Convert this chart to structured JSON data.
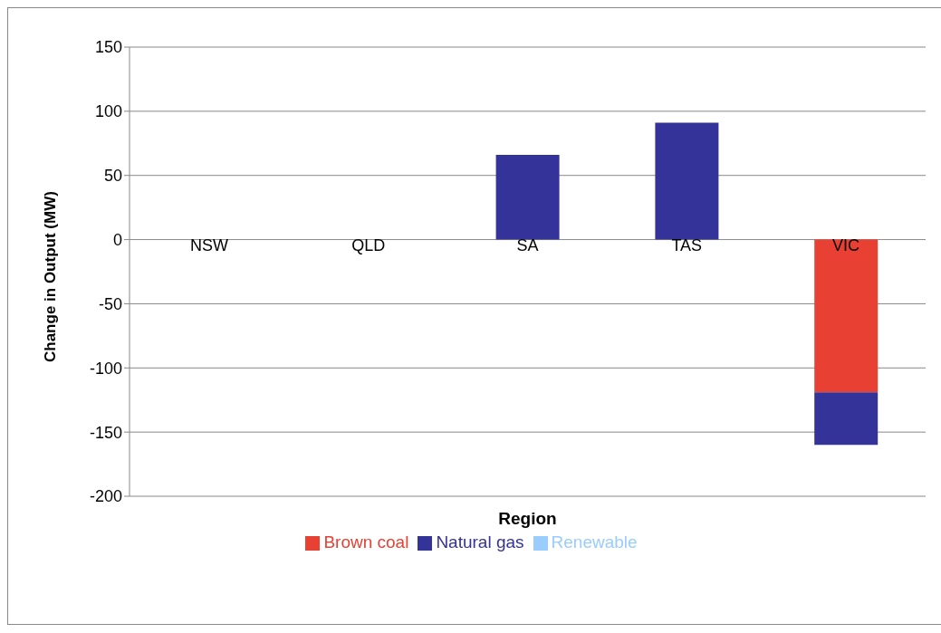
{
  "chart_data": {
    "type": "bar",
    "xlabel": "Region",
    "ylabel": "Change in Output (MW)",
    "categories": [
      "NSW",
      "QLD",
      "SA",
      "TAS",
      "VIC"
    ],
    "series": [
      {
        "name": "Brown coal",
        "color": "#e84033",
        "values": [
          0,
          0,
          0,
          0,
          -119
        ]
      },
      {
        "name": "Natural gas",
        "color": "#333399",
        "values": [
          0,
          0,
          66,
          91,
          -41
        ]
      },
      {
        "name": "Renewable",
        "color": "#99ccff",
        "values": [
          0,
          0,
          0,
          0,
          0
        ]
      }
    ],
    "stacked": true,
    "ylim": [
      -200,
      150
    ],
    "yticks": [
      -200,
      -150,
      -100,
      -50,
      0,
      50,
      100,
      150
    ],
    "grid": "y",
    "legend": "bottom"
  }
}
